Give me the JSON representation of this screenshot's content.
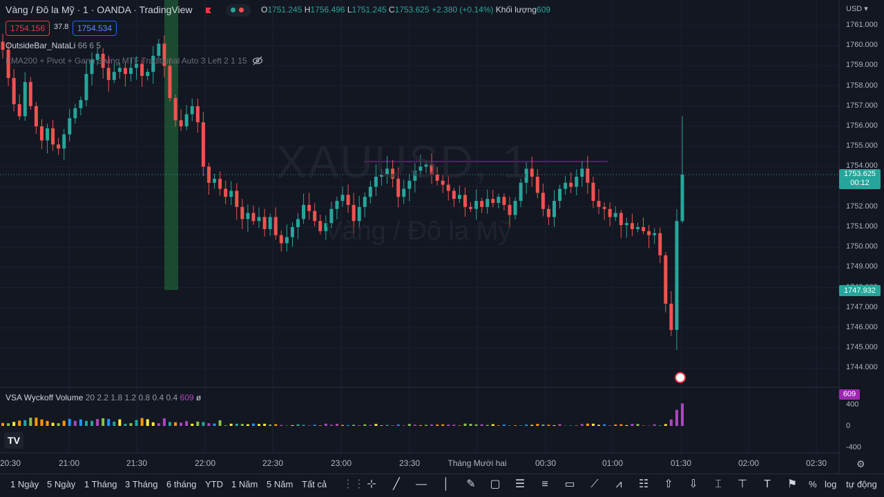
{
  "header": {
    "title": "Vàng / Đô la Mỹ · 1 · OANDA · TradingView",
    "ohlc": {
      "o_label": "O",
      "o": "1751.245",
      "h_label": "H",
      "h": "1756.496",
      "l_label": "L",
      "l": "1751.245",
      "c_label": "C",
      "c": "1753.625",
      "change": "+2.380 (+0.14%)",
      "volume_label": "Khối lượng",
      "volume": "609"
    }
  },
  "trade": {
    "sell": "1754.156",
    "spread": "37.8",
    "buy": "1754.534"
  },
  "indicators": {
    "outside_bar_name": "OutsideBar_NataLi",
    "outside_bar_params": "66 6 5",
    "ema_line": "EMA200 + Pivot + Gann Swing MTF Traditional Auto 3 Left 2 1 15"
  },
  "vsa": {
    "name": "VSA Wyckoff Volume",
    "params": "20 2.2 1.8 1.2 0.8 0.4 0.4",
    "value": "609",
    "suffix": "ø"
  },
  "watermark": {
    "symbol": "XAUUSD, 1",
    "description": "Vàng / Đô la Mỹ"
  },
  "price_axis": {
    "currency": "USD",
    "labels": [
      "1761.000",
      "1760.000",
      "1759.000",
      "1758.000",
      "1757.000",
      "1756.000",
      "1755.000",
      "1754.000",
      "1753.000",
      "1752.000",
      "1751.000",
      "1750.000",
      "1749.000",
      "1748.000",
      "1747.000",
      "1746.000",
      "1745.000",
      "1744.000"
    ],
    "last_price": "1753.625",
    "countdown": "00:12",
    "marker_price": "1747.932"
  },
  "volume_axis": {
    "labels": [
      "400",
      "0",
      "-400"
    ],
    "current": "609"
  },
  "time_axis": {
    "labels": [
      "20:30",
      "21:00",
      "21:30",
      "22:00",
      "22:30",
      "23:00",
      "23:30",
      "Tháng Mười hai",
      "00:30",
      "01:00",
      "01:30",
      "02:00",
      "02:30"
    ]
  },
  "ranges": [
    "1 Ngày",
    "5 Ngày",
    "1 Tháng",
    "3 Tháng",
    "6 tháng",
    "YTD",
    "1 Năm",
    "5 Năm",
    "Tất cả"
  ],
  "bottom_right": {
    "percent": "%",
    "log": "log",
    "auto": "tự động"
  },
  "logo": "TV",
  "chart_data": {
    "type": "candlestick",
    "symbol": "XAUUSD",
    "timeframe": "1",
    "ylim": [
      1744,
      1761
    ],
    "resistance_line": 1754.1,
    "last": 1753.625,
    "closes": [
      1759.8,
      1758.4,
      1757.1,
      1756.5,
      1758.2,
      1757.0,
      1756.0,
      1755.3,
      1755.9,
      1755.1,
      1754.9,
      1755.6,
      1756.4,
      1756.9,
      1757.3,
      1758.6,
      1759.3,
      1759.6,
      1758.9,
      1758.3,
      1758.7,
      1758.9,
      1758.6,
      1758.9,
      1759.1,
      1758.5,
      1758.7,
      1759.5,
      1760.1,
      1759.0,
      1757.4,
      1756.3,
      1756.0,
      1756.6,
      1757.0,
      1756.2,
      1754.0,
      1753.2,
      1753.4,
      1752.9,
      1752.5,
      1752.8,
      1752.0,
      1751.4,
      1751.7,
      1751.3,
      1751.5,
      1750.9,
      1751.5,
      1750.6,
      1750.2,
      1750.5,
      1751.0,
      1751.4,
      1752.1,
      1751.8,
      1751.3,
      1750.8,
      1751.2,
      1751.9,
      1752.3,
      1752.6,
      1752.1,
      1751.3,
      1752.0,
      1752.5,
      1753.0,
      1753.5,
      1753.6,
      1753.9,
      1753.4,
      1752.5,
      1752.9,
      1753.3,
      1753.8,
      1754.0,
      1754.1,
      1753.6,
      1753.3,
      1753.1,
      1752.8,
      1752.4,
      1752.6,
      1752.0,
      1751.9,
      1752.3,
      1752.0,
      1752.4,
      1752.2,
      1752.5,
      1752.1,
      1751.6,
      1752.3,
      1753.2,
      1753.9,
      1753.5,
      1752.7,
      1751.9,
      1751.5,
      1752.3,
      1752.9,
      1753.2,
      1753.0,
      1753.5,
      1753.9,
      1753.2,
      1752.3,
      1752.0,
      1751.9,
      1751.5,
      1751.7,
      1751.1,
      1751.2,
      1750.9,
      1751.0,
      1750.8,
      1750.6,
      1750.7,
      1749.6,
      1747.2,
      1745.9,
      1751.3,
      1753.6
    ]
  }
}
